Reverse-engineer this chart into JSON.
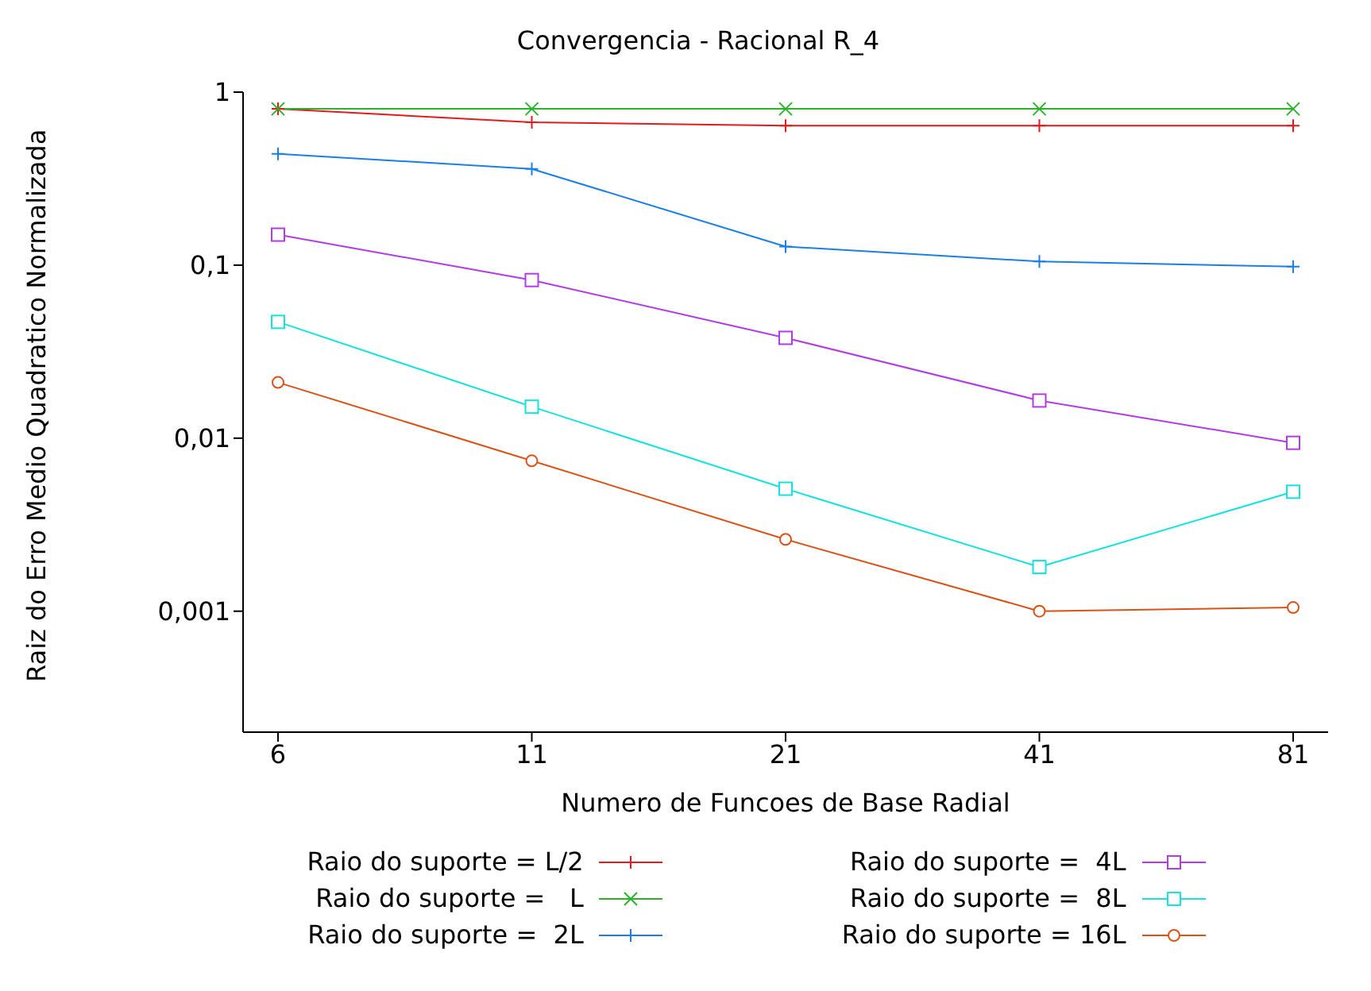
{
  "chart_data": {
    "type": "line",
    "title": "Convergencia - Racional R_4",
    "xlabel": "Numero de Funcoes de Base Radial",
    "ylabel": "Raiz do Erro Medio Quadratico Normalizada",
    "categories": [
      "6",
      "11",
      "21",
      "41",
      "81"
    ],
    "log": "y",
    "ylim": [
      0.0002,
      1
    ],
    "yticks": [
      {
        "value": 0.001,
        "label": "0,001"
      },
      {
        "value": 0.01,
        "label": "0,01"
      },
      {
        "value": 0.1,
        "label": "0,1"
      },
      1
    ],
    "grid": false,
    "legend": "bottom",
    "line_style": "solid",
    "series": [
      {
        "name": "Raio do suporte = L/2",
        "color": "#e41a1c",
        "marker": "cross",
        "values": [
          0.8,
          0.67,
          0.64,
          0.64,
          0.64
        ]
      },
      {
        "name": "Raio do suporte =   L",
        "color": "#2ab32a",
        "marker": "x",
        "values": [
          0.8,
          0.8,
          0.8,
          0.8,
          0.8
        ]
      },
      {
        "name": "Raio do suporte =  2L",
        "color": "#1a7fe6",
        "marker": "cross",
        "values": [
          0.44,
          0.36,
          0.128,
          0.105,
          0.098
        ]
      },
      {
        "name": "Raio do suporte =  4L",
        "color": "#b23be6",
        "marker": "square",
        "values": [
          0.15,
          0.082,
          0.038,
          0.0165,
          0.0094
        ]
      },
      {
        "name": "Raio do suporte =  8L",
        "color": "#16e0e0",
        "marker": "square",
        "values": [
          0.047,
          0.0152,
          0.0051,
          0.0018,
          0.0049
        ]
      },
      {
        "name": "Raio do suporte = 16L",
        "color": "#d95319",
        "marker": "circle",
        "values": [
          0.021,
          0.0074,
          0.0026,
          0.001,
          0.00105
        ]
      }
    ]
  }
}
